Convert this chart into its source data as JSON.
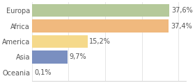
{
  "categories": [
    "Europa",
    "Africa",
    "America",
    "Asia",
    "Oceania"
  ],
  "values": [
    37.6,
    37.4,
    15.2,
    9.7,
    0.1
  ],
  "labels": [
    "37,6%",
    "37,4%",
    "15,2%",
    "9,7%",
    "0,1%"
  ],
  "bar_colors": [
    "#b5c99a",
    "#f0b97e",
    "#f5d98b",
    "#7a8fc0",
    "#c0c0c0"
  ],
  "background_color": "#ffffff",
  "xlim": [
    0,
    42
  ],
  "label_fontsize": 7.0,
  "tick_fontsize": 7.0,
  "bar_height": 0.82,
  "grid_color": "#e0e0e0",
  "spine_color": "#cccccc"
}
